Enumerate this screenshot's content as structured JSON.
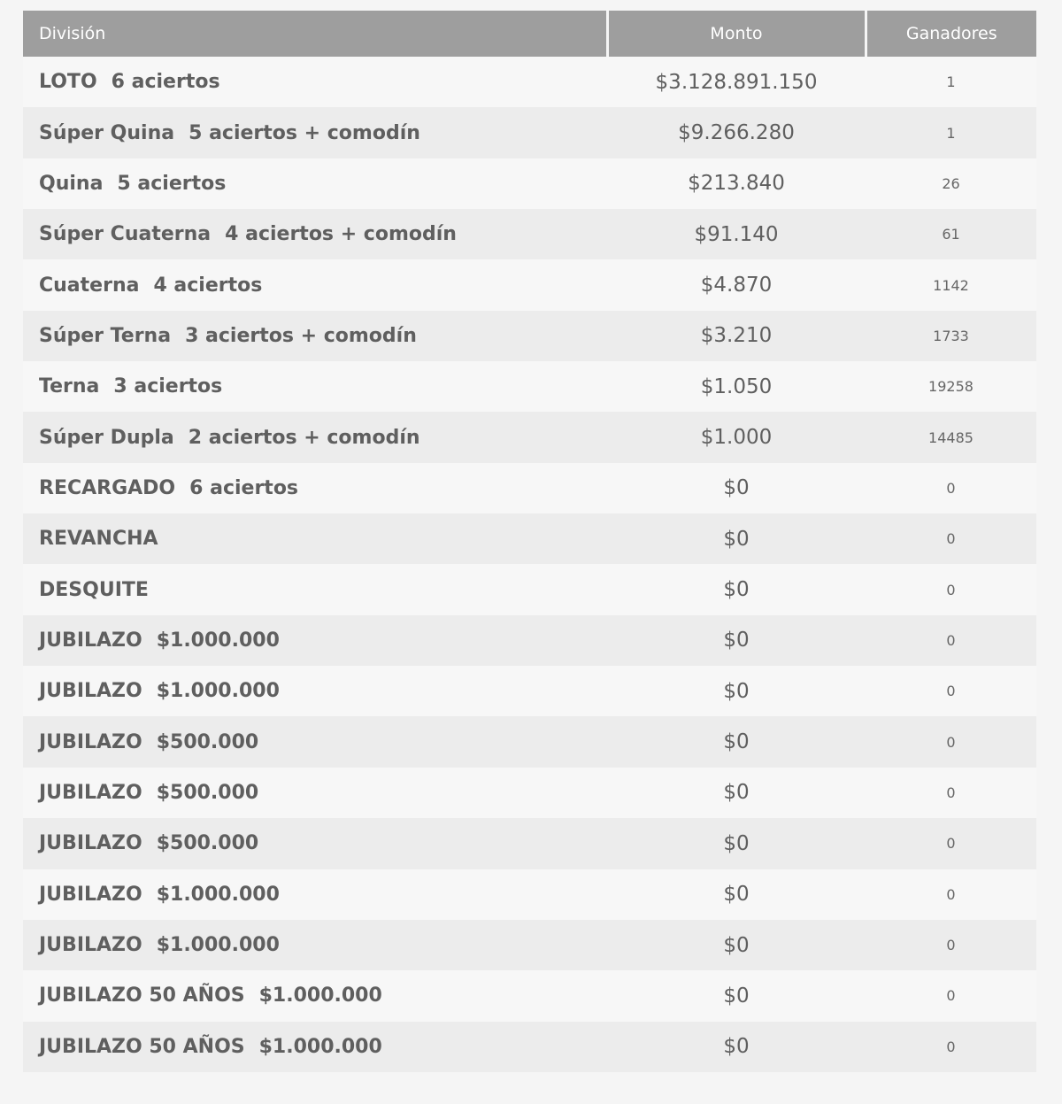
{
  "table": {
    "headers": {
      "division": "División",
      "monto": "Monto",
      "ganadores": "Ganadores"
    },
    "rows": [
      {
        "name": "LOTO",
        "detail": "6 aciertos",
        "monto": "$3.128.891.150",
        "ganadores": "1"
      },
      {
        "name": "Súper Quina",
        "detail": "5 aciertos + comodín",
        "monto": "$9.266.280",
        "ganadores": "1"
      },
      {
        "name": "Quina",
        "detail": "5 aciertos",
        "monto": "$213.840",
        "ganadores": "26"
      },
      {
        "name": "Súper Cuaterna",
        "detail": "4 aciertos + comodín",
        "monto": "$91.140",
        "ganadores": "61"
      },
      {
        "name": "Cuaterna",
        "detail": "4 aciertos",
        "monto": "$4.870",
        "ganadores": "1142"
      },
      {
        "name": "Súper Terna",
        "detail": "3 aciertos + comodín",
        "monto": "$3.210",
        "ganadores": "1733"
      },
      {
        "name": "Terna",
        "detail": "3 aciertos",
        "monto": "$1.050",
        "ganadores": "19258"
      },
      {
        "name": "Súper Dupla",
        "detail": "2 aciertos + comodín",
        "monto": "$1.000",
        "ganadores": "14485"
      },
      {
        "name": "RECARGADO",
        "detail": "6 aciertos",
        "monto": "$0",
        "ganadores": "0"
      },
      {
        "name": "REVANCHA",
        "detail": "",
        "monto": "$0",
        "ganadores": "0"
      },
      {
        "name": "DESQUITE",
        "detail": "",
        "monto": "$0",
        "ganadores": "0"
      },
      {
        "name": "JUBILAZO",
        "detail": "$1.000.000",
        "monto": "$0",
        "ganadores": "0"
      },
      {
        "name": "JUBILAZO",
        "detail": "$1.000.000",
        "monto": "$0",
        "ganadores": "0"
      },
      {
        "name": "JUBILAZO",
        "detail": "$500.000",
        "monto": "$0",
        "ganadores": "0"
      },
      {
        "name": "JUBILAZO",
        "detail": "$500.000",
        "monto": "$0",
        "ganadores": "0"
      },
      {
        "name": "JUBILAZO",
        "detail": "$500.000",
        "monto": "$0",
        "ganadores": "0"
      },
      {
        "name": "JUBILAZO",
        "detail": "$1.000.000",
        "monto": "$0",
        "ganadores": "0"
      },
      {
        "name": "JUBILAZO",
        "detail": "$1.000.000",
        "monto": "$0",
        "ganadores": "0"
      },
      {
        "name": "JUBILAZO 50 AÑOS",
        "detail": "$1.000.000",
        "monto": "$0",
        "ganadores": "0"
      },
      {
        "name": "JUBILAZO 50 AÑOS",
        "detail": "$1.000.000",
        "monto": "$0",
        "ganadores": "0"
      }
    ]
  },
  "colors": {
    "header_bg": "#9e9e9e",
    "header_text": "#ffffff",
    "row_light": "#f7f7f7",
    "row_dark": "#ececec",
    "text": "#5f5f5f"
  }
}
